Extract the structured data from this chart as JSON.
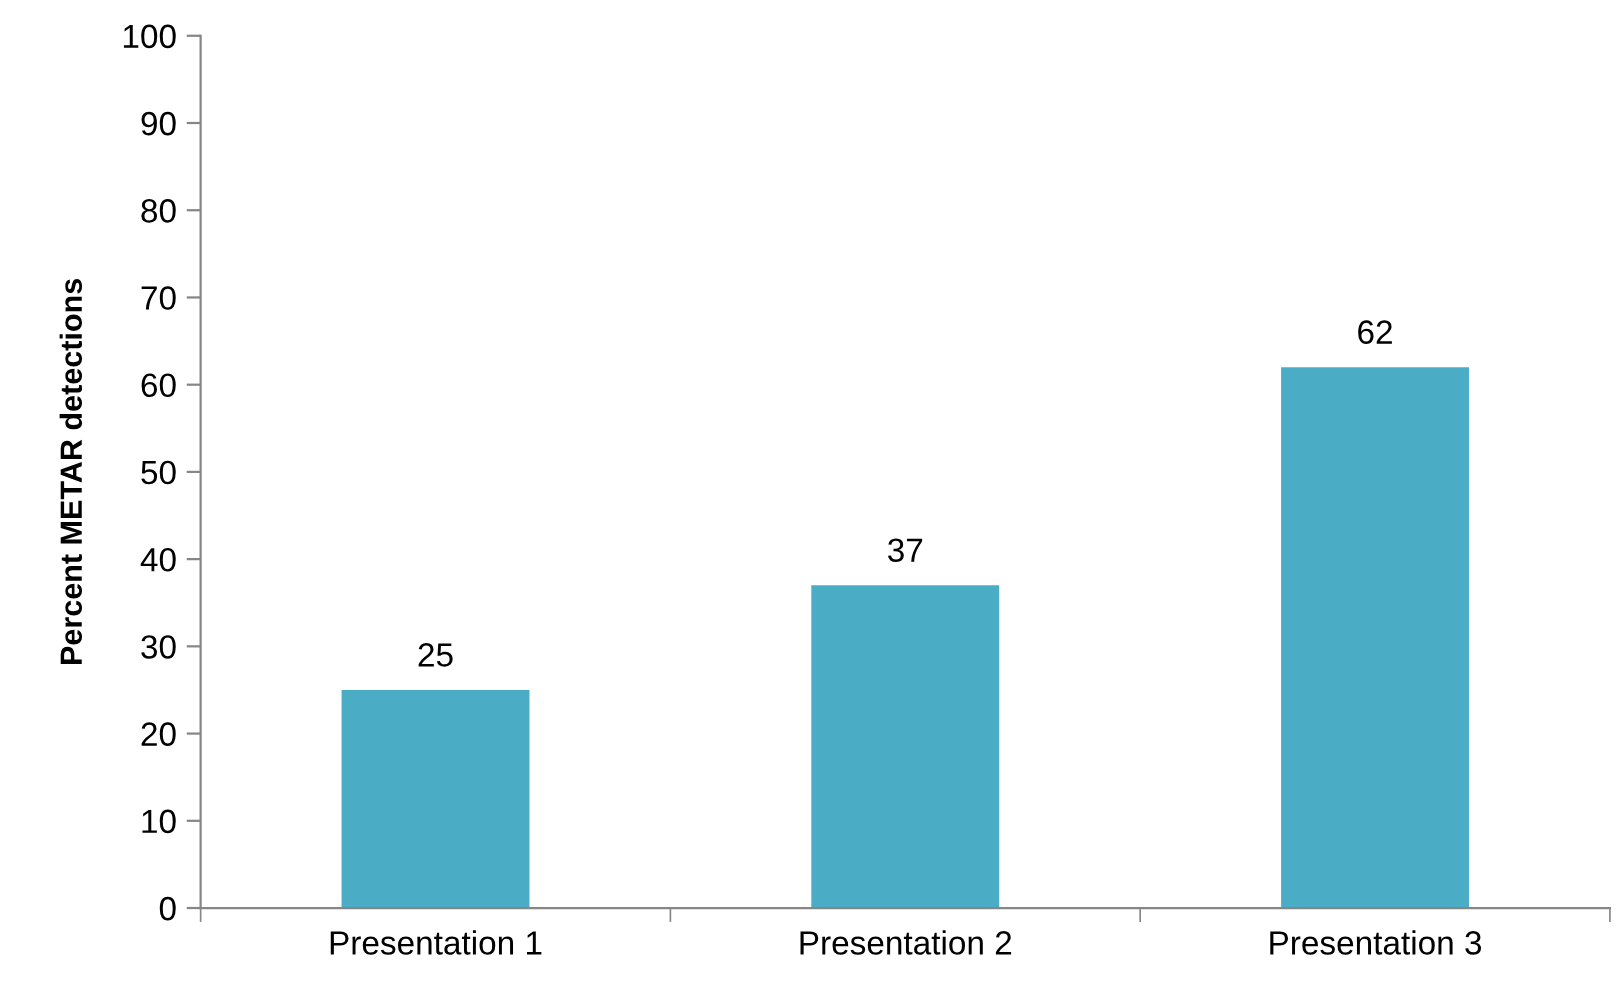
{
  "chart_data": {
    "type": "bar",
    "ylabel": "Percent METAR detections",
    "categories": [
      "Presentation 1",
      "Presentation 2",
      "Presentation 3"
    ],
    "values": [
      25,
      37,
      62
    ],
    "color": "#4bacc6",
    "ylim": [
      0,
      100
    ],
    "yticks": [
      0,
      10,
      20,
      30,
      40,
      50,
      60,
      70,
      80,
      90,
      100
    ],
    "data_labels": true,
    "grid": false,
    "legend": false
  }
}
